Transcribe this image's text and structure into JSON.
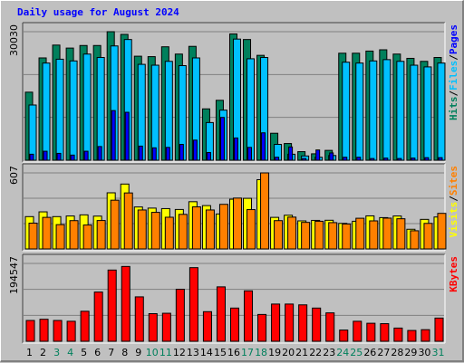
{
  "title": "Daily usage for August 2024",
  "colors": {
    "hits": "#00805c",
    "files": "#00c0ff",
    "pages": "#0000ff",
    "visits": "#ffff00",
    "sites": "#ff8000",
    "kbytes": "#ff0000",
    "weekend": "#00805c",
    "weekday": "#000000"
  },
  "chart_data": [
    {
      "type": "bar",
      "ylabel_max": "30030",
      "ymax": 30030,
      "categories": [
        "1",
        "2",
        "3",
        "4",
        "5",
        "6",
        "7",
        "8",
        "9",
        "10",
        "11",
        "12",
        "13",
        "14",
        "15",
        "16",
        "17",
        "18",
        "19",
        "20",
        "21",
        "22",
        "23",
        "24",
        "25",
        "26",
        "27",
        "28",
        "29",
        "30",
        "31"
      ],
      "weekend_days": [
        "3",
        "4",
        "10",
        "11",
        "17",
        "18",
        "24",
        "25",
        "31"
      ],
      "legend": [
        "Hits",
        "Files",
        "Pages"
      ],
      "series": [
        {
          "name": "Hits",
          "values": [
            15900,
            23900,
            26900,
            26200,
            26800,
            26800,
            30030,
            29400,
            24300,
            24200,
            26500,
            24800,
            26600,
            12000,
            14000,
            29500,
            28200,
            24500,
            6300,
            3900,
            2000,
            1500,
            2300,
            25000,
            25000,
            25500,
            25800,
            24800,
            23800,
            23100,
            24000
          ]
        },
        {
          "name": "Files",
          "values": [
            12900,
            22700,
            23600,
            23200,
            24800,
            24000,
            26700,
            28200,
            22400,
            22200,
            23100,
            22100,
            23900,
            8800,
            11700,
            28300,
            23700,
            24000,
            3700,
            1400,
            1000,
            700,
            1100,
            22900,
            22700,
            23200,
            23500,
            23100,
            22200,
            21800,
            22700
          ]
        },
        {
          "name": "Pages",
          "values": [
            1400,
            2100,
            1600,
            1200,
            2100,
            3200,
            11600,
            11200,
            3300,
            2900,
            3000,
            3700,
            4700,
            1800,
            10000,
            5200,
            3000,
            6400,
            700,
            3100,
            400,
            2400,
            1700,
            700,
            700,
            400,
            500,
            400,
            500,
            600,
            600
          ]
        }
      ]
    },
    {
      "type": "bar",
      "ylabel_max": "607",
      "ymax": 607,
      "categories": [
        "1",
        "2",
        "3",
        "4",
        "5",
        "6",
        "7",
        "8",
        "9",
        "10",
        "11",
        "12",
        "13",
        "14",
        "15",
        "16",
        "17",
        "18",
        "19",
        "20",
        "21",
        "22",
        "23",
        "24",
        "25",
        "26",
        "27",
        "28",
        "29",
        "30",
        "31"
      ],
      "legend": [
        "Visits",
        "Sites"
      ],
      "series": [
        {
          "name": "Visits",
          "values": [
            258,
            296,
            258,
            263,
            272,
            262,
            448,
            518,
            335,
            326,
            322,
            315,
            377,
            346,
            279,
            397,
            404,
            553,
            252,
            269,
            224,
            228,
            229,
            204,
            221,
            264,
            250,
            263,
            157,
            236,
            255
          ]
        },
        {
          "name": "Sites",
          "values": [
            206,
            252,
            194,
            226,
            191,
            227,
            389,
            447,
            311,
            292,
            253,
            276,
            336,
            311,
            356,
            406,
            314,
            607,
            226,
            254,
            212,
            221,
            210,
            199,
            245,
            224,
            246,
            241,
            145,
            204,
            284
          ]
        }
      ]
    },
    {
      "type": "bar",
      "ylabel_max": "194547",
      "ymax": 194547,
      "categories": [
        "1",
        "2",
        "3",
        "4",
        "5",
        "6",
        "7",
        "8",
        "9",
        "10",
        "11",
        "12",
        "13",
        "14",
        "15",
        "16",
        "17",
        "18",
        "19",
        "20",
        "21",
        "22",
        "23",
        "24",
        "25",
        "26",
        "27",
        "28",
        "29",
        "30",
        "31"
      ],
      "legend": [
        "KBytes"
      ],
      "series": [
        {
          "name": "KBytes",
          "values": [
            52000,
            55000,
            52000,
            50000,
            75000,
            123000,
            178000,
            187000,
            111000,
            69000,
            70000,
            130000,
            184000,
            74000,
            136000,
            83000,
            126000,
            67000,
            93000,
            93000,
            91000,
            83000,
            71000,
            28000,
            50000,
            45000,
            44000,
            33000,
            27000,
            29000,
            58000
          ]
        }
      ]
    }
  ]
}
